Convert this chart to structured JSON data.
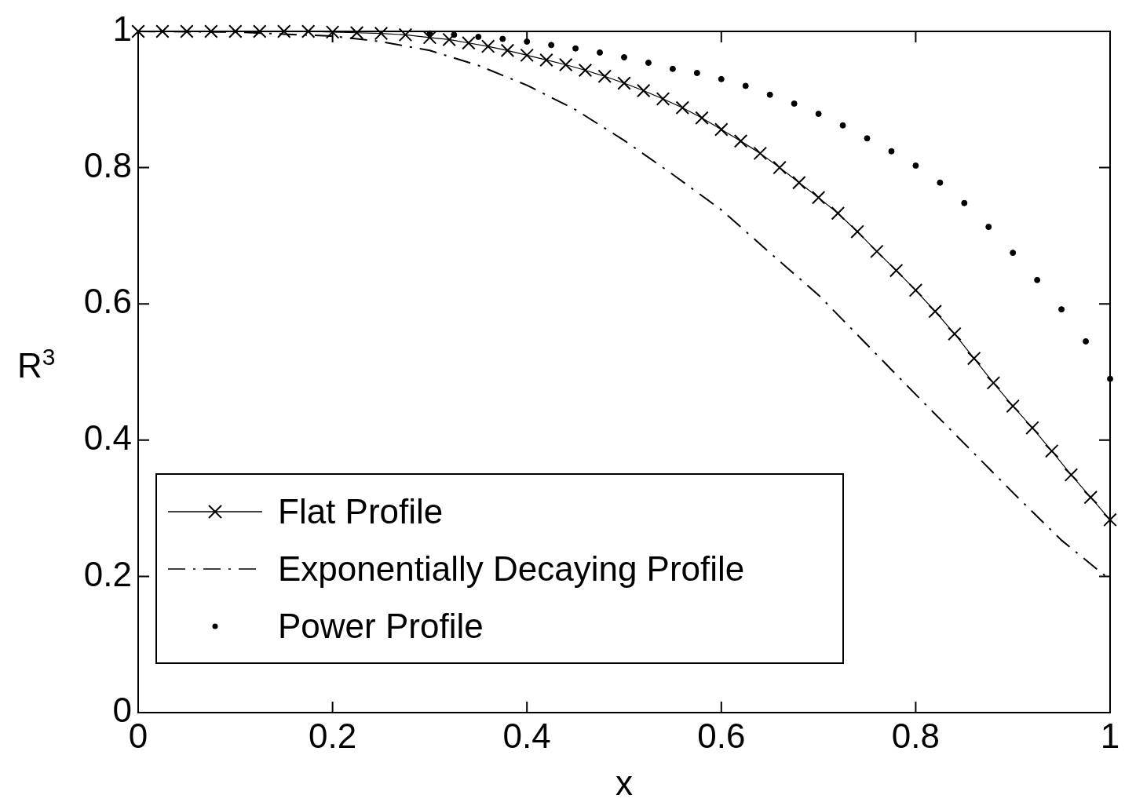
{
  "chart_data": {
    "type": "line",
    "xlabel": "x",
    "ylabel": "R$^{3}$",
    "xlim": [
      0,
      1
    ],
    "ylim": [
      0,
      1
    ],
    "xticks": [
      0,
      0.2,
      0.4,
      0.6,
      0.8,
      1
    ],
    "yticks": [
      0,
      0.2,
      0.4,
      0.6,
      0.8,
      1
    ],
    "legend": "bottom left",
    "series": [
      {
        "name": "Flat Profile",
        "color": "#000000",
        "marker": "cross",
        "line_style": "solid",
        "x": [
          0,
          0.025,
          0.05,
          0.075,
          0.1,
          0.125,
          0.15,
          0.175,
          0.2,
          0.225,
          0.25,
          0.275,
          0.3,
          0.32,
          0.34,
          0.36,
          0.38,
          0.4,
          0.42,
          0.44,
          0.46,
          0.48,
          0.5,
          0.52,
          0.54,
          0.56,
          0.58,
          0.6,
          0.62,
          0.64,
          0.66,
          0.68,
          0.7,
          0.72,
          0.74,
          0.76,
          0.78,
          0.8,
          0.82,
          0.84,
          0.86,
          0.88,
          0.9,
          0.92,
          0.94,
          0.96,
          0.98,
          1
        ],
        "values": [
          1,
          1,
          1,
          1,
          1,
          1,
          1,
          1,
          0.999,
          0.998,
          0.997,
          0.995,
          0.991,
          0.988,
          0.983,
          0.978,
          0.972,
          0.965,
          0.958,
          0.951,
          0.943,
          0.934,
          0.924,
          0.913,
          0.901,
          0.888,
          0.873,
          0.856,
          0.839,
          0.821,
          0.8,
          0.778,
          0.756,
          0.733,
          0.706,
          0.677,
          0.649,
          0.62,
          0.589,
          0.556,
          0.52,
          0.484,
          0.45,
          0.418,
          0.384,
          0.349,
          0.316,
          0.283
        ]
      },
      {
        "name": "Exponentially Decaying Profile",
        "color": "#000000",
        "marker": "none",
        "line_style": "dashdot",
        "x": [
          0,
          0.1,
          0.2,
          0.25,
          0.3,
          0.35,
          0.4,
          0.45,
          0.5,
          0.55,
          0.6,
          0.65,
          0.7,
          0.75,
          0.8,
          0.85,
          0.9,
          0.95,
          1
        ],
        "values": [
          1,
          0.999,
          0.993,
          0.985,
          0.972,
          0.95,
          0.921,
          0.885,
          0.84,
          0.79,
          0.738,
          0.675,
          0.613,
          0.54,
          0.467,
          0.395,
          0.323,
          0.253,
          0.195
        ]
      },
      {
        "name": "Power Profile",
        "type": "scatter",
        "color": "#000000",
        "marker": "circle",
        "x": [
          0.3,
          0.325,
          0.35,
          0.375,
          0.4,
          0.425,
          0.45,
          0.475,
          0.5,
          0.525,
          0.55,
          0.575,
          0.6,
          0.625,
          0.65,
          0.675,
          0.7,
          0.725,
          0.75,
          0.775,
          0.8,
          0.825,
          0.85,
          0.875,
          0.9,
          0.925,
          0.95,
          0.975,
          1
        ],
        "values": [
          0.997,
          0.995,
          0.992,
          0.989,
          0.985,
          0.98,
          0.975,
          0.969,
          0.962,
          0.954,
          0.945,
          0.939,
          0.93,
          0.92,
          0.907,
          0.894,
          0.879,
          0.862,
          0.843,
          0.824,
          0.803,
          0.778,
          0.748,
          0.713,
          0.675,
          0.635,
          0.592,
          0.545,
          0.49
        ]
      }
    ]
  }
}
